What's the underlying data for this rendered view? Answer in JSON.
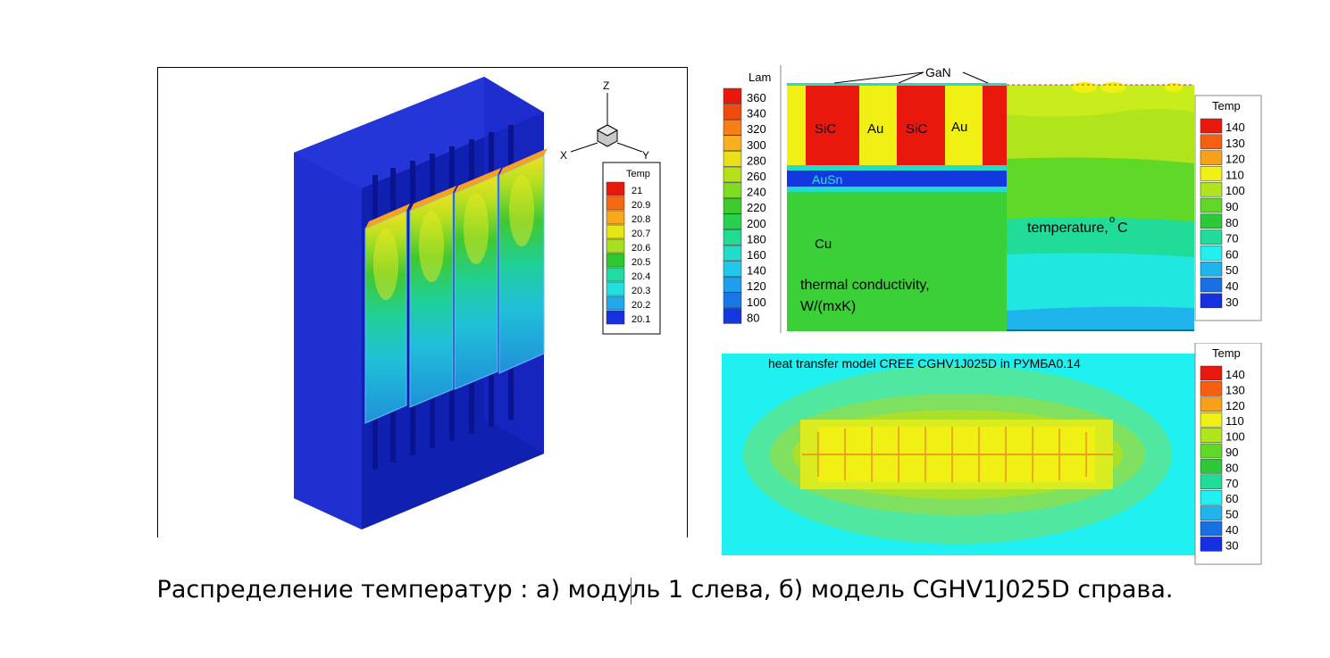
{
  "caption": "Распределение температур : а) модуль 1 слева, б) модель CGHV1J025D справа.",
  "caption_part1": "Распределение температур : а) моду",
  "caption_part2": "ль 1 слева, б) модель CGHV1J025D справа.",
  "panel_a": {
    "axes": {
      "z": "Z",
      "x": "X",
      "y": "Y"
    },
    "legend_title": "Temp",
    "legend_levels": [
      "21",
      "20.9",
      "20.8",
      "20.7",
      "20.6",
      "20.5",
      "20.4",
      "20.3",
      "20.2",
      "20.1"
    ],
    "legend_colors": [
      "#e8180c",
      "#f56a10",
      "#f8a81a",
      "#e6e614",
      "#a8e020",
      "#2fc82f",
      "#20dca0",
      "#20e0e0",
      "#20a8e8",
      "#1830e0"
    ]
  },
  "panel_b_top": {
    "lam_legend_title": "Lam",
    "lam_levels": [
      "360",
      "340",
      "320",
      "300",
      "280",
      "260",
      "240",
      "220",
      "200",
      "180",
      "160",
      "140",
      "120",
      "100",
      "80"
    ],
    "lam_colors": [
      "#e8180c",
      "#f04a10",
      "#f87e18",
      "#f8b020",
      "#e8e018",
      "#b4e01c",
      "#80dc20",
      "#3ccc30",
      "#28d050",
      "#20dc90",
      "#20dcc8",
      "#20c8ec",
      "#20a0ec",
      "#1878e8",
      "#1438e0"
    ],
    "labels": {
      "gan": "GaN",
      "sic1": "SiC",
      "au1": "Au",
      "sic2": "SiC",
      "au2": "Au",
      "ausn": "AuSn",
      "cu": "Cu",
      "thermal1": "thermal conductivity,",
      "thermal2": "W/(mxK)",
      "temperature": "temperature,",
      "temperature_sup": "o",
      "temperature_unit": "C"
    },
    "temp_legend_title": "Temp",
    "temp_levels": [
      "140",
      "130",
      "120",
      "110",
      "100",
      "90",
      "80",
      "70",
      "60",
      "50",
      "40",
      "30"
    ],
    "temp_colors": [
      "#e8180c",
      "#f56010",
      "#f8a018",
      "#f0f014",
      "#b0e41c",
      "#60d828",
      "#2cc838",
      "#20dc98",
      "#20f0f0",
      "#20b4ec",
      "#1870e4",
      "#1430e0"
    ]
  },
  "panel_b_bottom": {
    "title": "heat transfer model CREE CGHV1J025D in РУМБА0.14",
    "temp_legend_title": "Temp",
    "temp_levels": [
      "140",
      "130",
      "120",
      "110",
      "100",
      "90",
      "80",
      "70",
      "60",
      "50",
      "40",
      "30"
    ],
    "temp_colors": [
      "#e8180c",
      "#f56010",
      "#f8a018",
      "#f0f014",
      "#b0e41c",
      "#60d828",
      "#2cc838",
      "#20dc98",
      "#20f0f0",
      "#20b4ec",
      "#1870e4",
      "#1430e0"
    ]
  }
}
